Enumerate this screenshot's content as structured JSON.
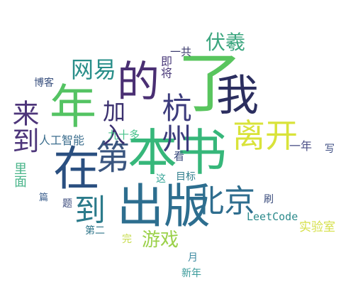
{
  "words": {
    "wo": {
      "text": "我",
      "color": "#2b2e5f"
    },
    "le": {
      "text": "了",
      "color": "#59c55e"
    },
    "de": {
      "text": "的",
      "color": "#4a2f73"
    },
    "ben_shu": {
      "text": "本书",
      "color": "#36b77a"
    },
    "chu_ban": {
      "text": "出版",
      "color": "#2d6e8f"
    },
    "nian": {
      "text": "年",
      "color": "#54c363"
    },
    "zai": {
      "text": "在",
      "color": "#2a4f80"
    },
    "hangzhou": {
      "text": "杭州",
      "color": "#3c3b7c"
    },
    "beijing": {
      "text": "北京",
      "color": "#2e6d8e"
    },
    "li_kai": {
      "text": "离开",
      "color": "#d9e33a"
    },
    "di": {
      "text": "第",
      "color": "#3a557f"
    },
    "lai_dao": {
      "text": "来到",
      "color": "#4d357a"
    },
    "dao": {
      "text": "到",
      "color": "#2c7b8b"
    },
    "jia_ru": {
      "text": "加入",
      "color": "#3a2f6f"
    },
    "wang_yi": {
      "text": "网易",
      "color": "#2a8f8a"
    },
    "fu_xi": {
      "text": "伏羲",
      "color": "#3ca67f"
    },
    "you_xi": {
      "text": "游戏",
      "color": "#9bd14a"
    },
    "yi_nian": {
      "text": "一年",
      "color": "#4a4e86"
    },
    "xie": {
      "text": "写",
      "color": "#3a4a80"
    },
    "ren_gong": {
      "text": "人工智能",
      "color": "#3c6e8e"
    },
    "jiu_shi_duo": {
      "text": "九十多",
      "color": "#46c28a"
    },
    "li_mian": {
      "text": "里面",
      "color": "#4ab58a"
    },
    "bo_ke": {
      "text": "博客",
      "color": "#3a517f"
    },
    "ji_jiang": {
      "text": "即将",
      "color": "#4a3a7a"
    },
    "yi_gong": {
      "text": "一共",
      "color": "#3d3d6e"
    },
    "kan": {
      "text": "看",
      "color": "#3b4c7e"
    },
    "zhe": {
      "text": "这",
      "color": "#3ba79a"
    },
    "mu_biao": {
      "text": "目标",
      "color": "#2f7d8c"
    },
    "shua": {
      "text": "刷",
      "color": "#3a4c7c"
    },
    "leetcode": {
      "text": "LeetCode",
      "color": "#2d8b8c"
    },
    "shi_yan_shi": {
      "text": "实验室",
      "color": "#d6e04a"
    },
    "pian": {
      "text": "篇",
      "color": "#3a5e8c"
    },
    "ti": {
      "text": "题",
      "color": "#3a4a7c"
    },
    "di_er": {
      "text": "第二",
      "color": "#2e7489"
    },
    "wan": {
      "text": "完",
      "color": "#c6db4a"
    },
    "yue": {
      "text": "月",
      "color": "#3c89a0"
    },
    "xin_nian": {
      "text": "新年",
      "color": "#3a9a9a"
    }
  }
}
